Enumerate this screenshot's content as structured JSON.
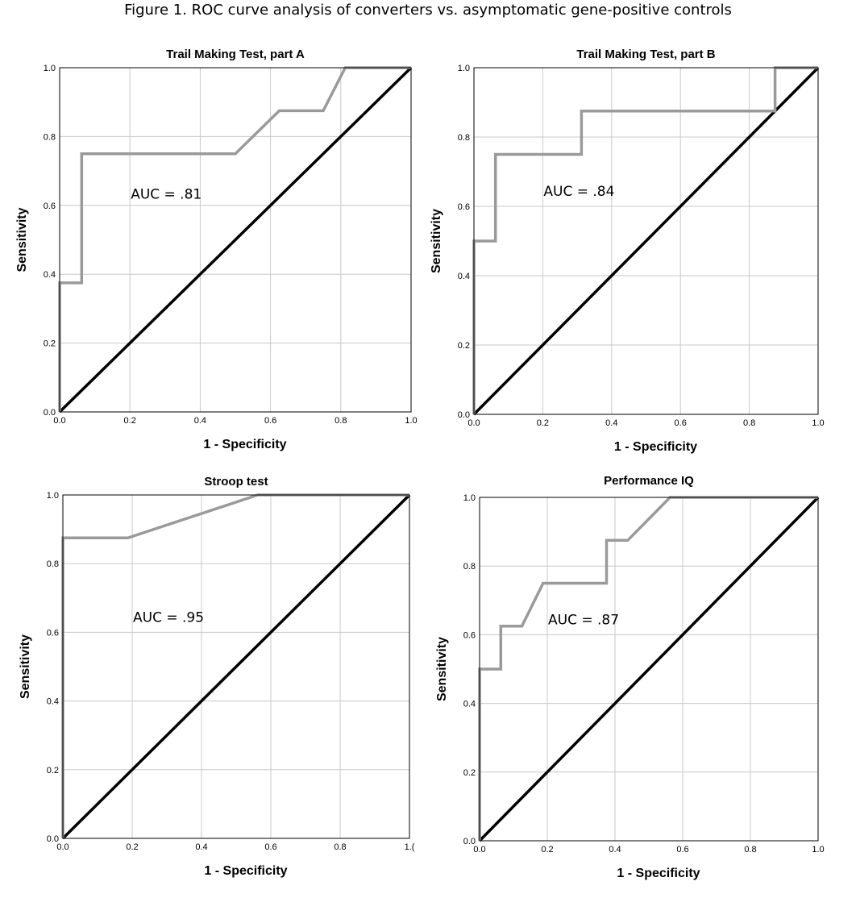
{
  "figure_title": "Figure 1. ROC curve analysis of converters vs. asymptomatic gene-positive controls",
  "colors": {
    "roc_curve": "#9a9a9a",
    "reference_line": "#000000",
    "grid": "#c8c8c8"
  },
  "chart_data": [
    {
      "type": "line",
      "title": "Trail Making Test, part A",
      "xlabel": "1 - Specificity",
      "ylabel": "Sensitivity",
      "xlim": [
        0,
        1
      ],
      "ylim": [
        0,
        1
      ],
      "x_ticks": [
        "0.0",
        "0.2",
        "0.4",
        "0.6",
        "0.8",
        "1.0"
      ],
      "y_ticks": [
        "0.0",
        "0.2",
        "0.4",
        "0.6",
        "0.8",
        "1.0"
      ],
      "grid": true,
      "annotation": "AUC = .81",
      "series": [
        {
          "points": [
            [
              0,
              0
            ],
            [
              0,
              0.375
            ],
            [
              0.0625,
              0.375
            ],
            [
              0.0625,
              0.75
            ],
            [
              0.5,
              0.75
            ],
            [
              0.625,
              0.875
            ],
            [
              0.75,
              0.875
            ],
            [
              0.8125,
              1
            ],
            [
              1,
              1
            ]
          ]
        },
        {
          "points": [
            [
              0,
              0
            ],
            [
              1,
              1
            ]
          ]
        }
      ]
    },
    {
      "type": "line",
      "title": "Trail Making Test, part B",
      "xlabel": "1 - Specificity",
      "ylabel": "Sensitivity",
      "xlim": [
        0,
        1
      ],
      "ylim": [
        0,
        1
      ],
      "x_ticks": [
        "0.0",
        "0.2",
        "0.4",
        "0.6",
        "0.8",
        "1.0"
      ],
      "y_ticks": [
        "0.0",
        "0.2",
        "0.4",
        "0.6",
        "0.8",
        "1.0"
      ],
      "grid": true,
      "annotation": "AUC = .84",
      "series": [
        {
          "points": [
            [
              0,
              0
            ],
            [
              0,
              0.5
            ],
            [
              0.0625,
              0.5
            ],
            [
              0.0625,
              0.75
            ],
            [
              0.3125,
              0.75
            ],
            [
              0.3125,
              0.875
            ],
            [
              0.875,
              0.875
            ],
            [
              0.875,
              1
            ],
            [
              1,
              1
            ]
          ]
        },
        {
          "points": [
            [
              0,
              0
            ],
            [
              1,
              1
            ]
          ]
        }
      ]
    },
    {
      "type": "line",
      "title": "Stroop test",
      "xlabel": "1 - Specificity",
      "ylabel": "Sensitivity",
      "xlim": [
        0,
        1
      ],
      "ylim": [
        0,
        1
      ],
      "x_ticks": [
        "0.0",
        "0.2",
        "0.4",
        "0.6",
        "0.8",
        "1.("
      ],
      "y_ticks": [
        "0.0",
        "0.2",
        "0.4",
        "0.6",
        "0.8",
        "1.0"
      ],
      "grid": true,
      "annotation": "AUC = .95",
      "series": [
        {
          "points": [
            [
              0,
              0
            ],
            [
              0,
              0.875
            ],
            [
              0.1875,
              0.875
            ],
            [
              0.5625,
              1
            ],
            [
              1,
              1
            ]
          ]
        },
        {
          "points": [
            [
              0,
              0
            ],
            [
              1,
              1
            ]
          ]
        }
      ]
    },
    {
      "type": "line",
      "title": "Performance IQ",
      "xlabel": "1 - Specificity",
      "ylabel": "Sensitivity",
      "xlim": [
        0,
        1
      ],
      "ylim": [
        0,
        1
      ],
      "x_ticks": [
        "0.0",
        "0.2",
        "0.4",
        "0.6",
        "0.8",
        "1.0"
      ],
      "y_ticks": [
        "0.0",
        "0.2",
        "0.4",
        "0.6",
        "0.8",
        "1.0"
      ],
      "grid": true,
      "annotation": "AUC = .87",
      "series": [
        {
          "points": [
            [
              0,
              0
            ],
            [
              0,
              0.5
            ],
            [
              0.0625,
              0.5
            ],
            [
              0.0625,
              0.625
            ],
            [
              0.125,
              0.625
            ],
            [
              0.1875,
              0.75
            ],
            [
              0.375,
              0.75
            ],
            [
              0.375,
              0.875
            ],
            [
              0.4375,
              0.875
            ],
            [
              0.5625,
              1
            ],
            [
              1,
              1
            ]
          ]
        },
        {
          "points": [
            [
              0,
              0
            ],
            [
              1,
              1
            ]
          ]
        }
      ]
    }
  ]
}
